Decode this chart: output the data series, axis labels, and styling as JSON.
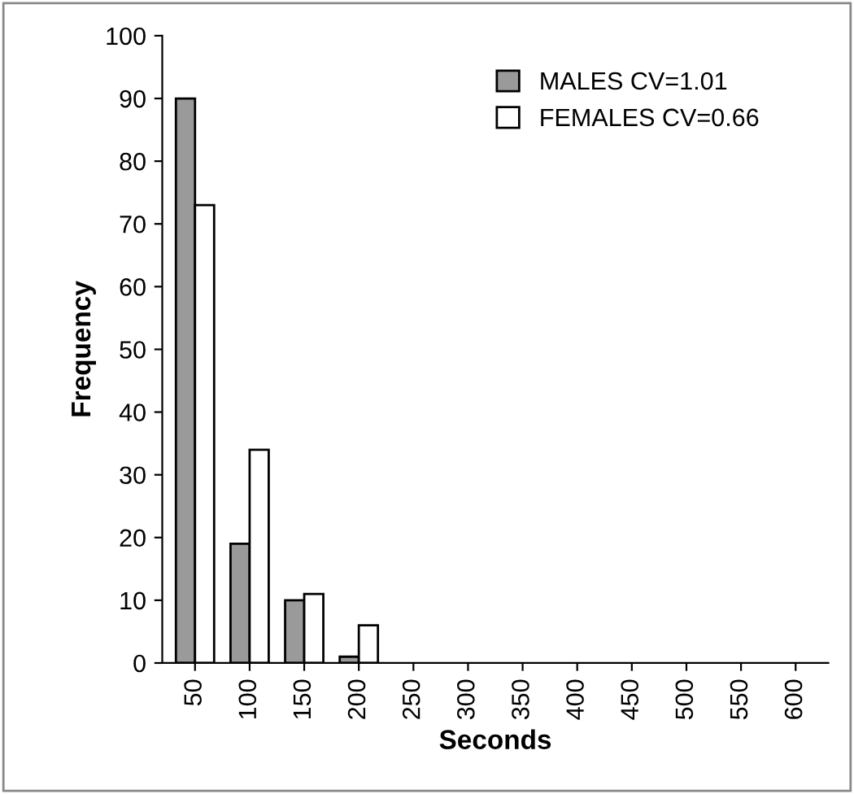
{
  "chart_data": {
    "type": "bar",
    "xlabel": "Seconds",
    "ylabel": "Frequency",
    "categories": [
      "50",
      "100",
      "150",
      "200",
      "250",
      "300",
      "350",
      "400",
      "450",
      "500",
      "550",
      "600"
    ],
    "series": [
      {
        "name": "MALES CV=1.01",
        "color": "#9a9a9a",
        "values": [
          90,
          19,
          10,
          1,
          0,
          0,
          0,
          0,
          0,
          0,
          0,
          0
        ]
      },
      {
        "name": "FEMALES CV=0.66",
        "color": "#ffffff",
        "values": [
          73,
          34,
          11,
          6,
          0,
          0,
          0,
          0,
          0,
          0,
          0,
          0
        ]
      }
    ],
    "ylim": [
      0,
      100
    ],
    "yticks": [
      0,
      10,
      20,
      30,
      40,
      50,
      60,
      70,
      80,
      90,
      100
    ],
    "grid": false,
    "legend": "top right"
  }
}
